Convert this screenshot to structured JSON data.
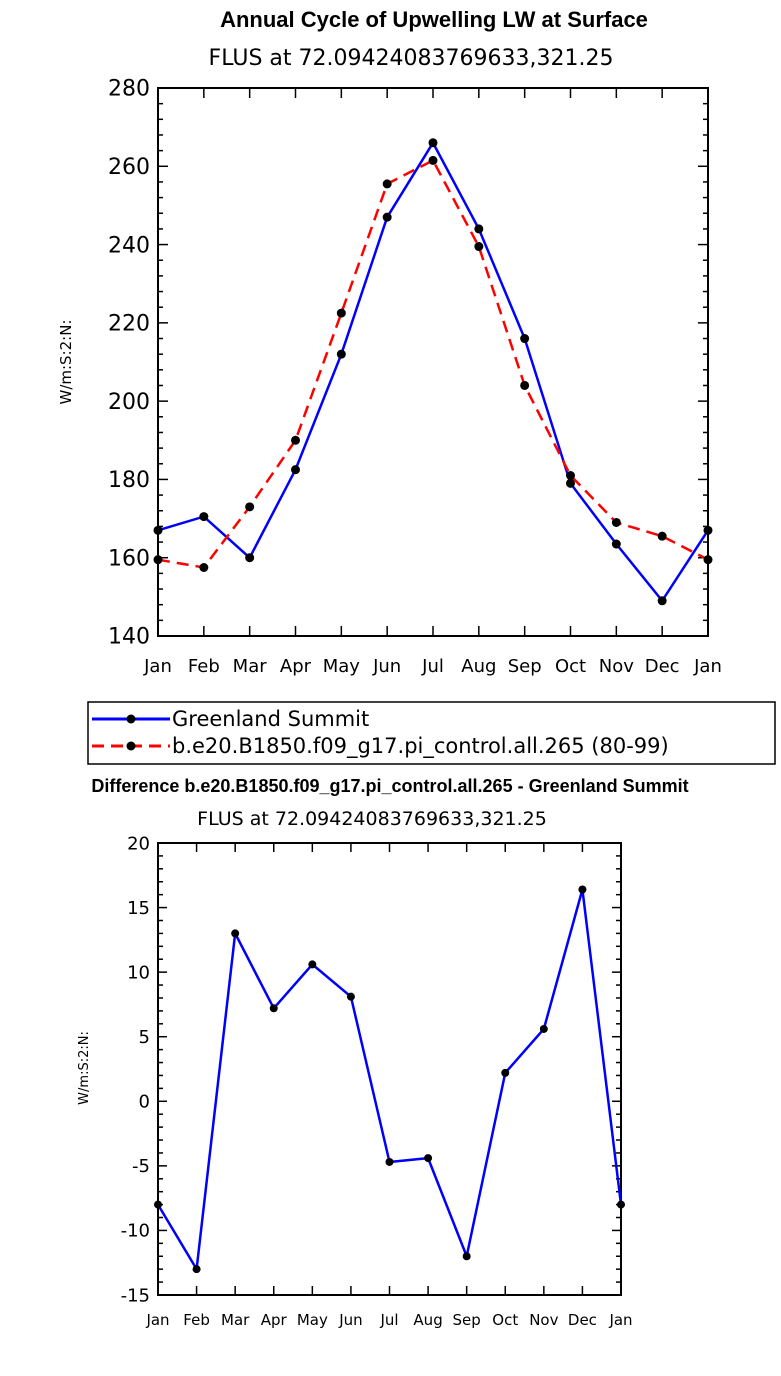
{
  "chart_data": [
    {
      "type": "line",
      "title": "Annual Cycle of Upwelling LW at Surface",
      "subtitle": "FLUS at 72.09424083769633,321.25",
      "ylabel": "W/m:S:2:N:",
      "xlabel": "",
      "categories": [
        "Jan",
        "Feb",
        "Mar",
        "Apr",
        "May",
        "Jun",
        "Jul",
        "Aug",
        "Sep",
        "Oct",
        "Nov",
        "Dec",
        "Jan"
      ],
      "ylim": [
        140,
        280
      ],
      "yticks": [
        140,
        160,
        180,
        200,
        220,
        240,
        260,
        280
      ],
      "series": [
        {
          "name": "Greenland Summit",
          "color": "#0000ff",
          "dash": "solid",
          "values": [
            167,
            170.5,
            160,
            182.5,
            212,
            247,
            266,
            244,
            216,
            179,
            163.5,
            149,
            167
          ]
        },
        {
          "name": "b.e20.B1850.f09_g17.pi_control.all.265 (80-99)",
          "color": "#ff0000",
          "dash": "dashed",
          "values": [
            159.5,
            157.5,
            173,
            190,
            222.5,
            255.5,
            261.5,
            239.5,
            204,
            181,
            169,
            165.5,
            159.5
          ]
        }
      ],
      "legend": "below"
    },
    {
      "type": "line",
      "title": "Difference b.e20.B1850.f09_g17.pi_control.all.265 - Greenland Summit",
      "subtitle": "FLUS at 72.09424083769633,321.25",
      "ylabel": "W/m:S:2:N:",
      "xlabel": "",
      "categories": [
        "Jan",
        "Feb",
        "Mar",
        "Apr",
        "May",
        "Jun",
        "Jul",
        "Aug",
        "Sep",
        "Oct",
        "Nov",
        "Dec",
        "Jan"
      ],
      "ylim": [
        -15,
        20
      ],
      "yticks": [
        -15,
        -10,
        -5,
        0,
        5,
        10,
        15,
        20
      ],
      "series": [
        {
          "color": "#0000ff",
          "dash": "solid",
          "values": [
            -8,
            -13,
            13,
            7.2,
            10.6,
            8.1,
            -4.7,
            -4.4,
            -12,
            2.2,
            5.6,
            16.4,
            -8
          ]
        }
      ]
    }
  ]
}
